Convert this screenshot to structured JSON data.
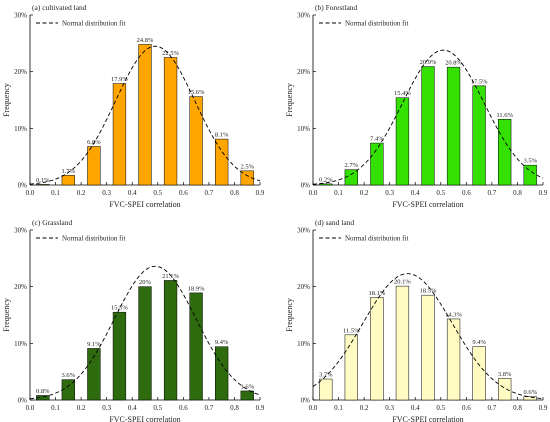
{
  "chart_data": [
    {
      "type": "bar",
      "panel": "(a) cultivated land",
      "legend_label": "Normal distribution fit",
      "xlabel": "FVC-SPEI correlation",
      "ylabel": "Frequency",
      "x": [
        0.05,
        0.15,
        0.25,
        0.35,
        0.45,
        0.55,
        0.65,
        0.75,
        0.85
      ],
      "values": [
        0.1,
        1.7,
        6.8,
        17.9,
        24.8,
        22.5,
        15.6,
        8.1,
        2.5
      ],
      "labels": [
        "0.1%",
        "1.7%",
        "6.8%",
        "17.9%",
        "24.8%",
        "22.5%",
        "15.6%",
        "8.1%",
        "2.5%"
      ],
      "fit": {
        "mean": 0.49,
        "sd": 0.155,
        "peak": 24.5
      },
      "xlim": [
        0,
        0.9
      ],
      "ylim": [
        0,
        30
      ],
      "xticks": [
        "0.0",
        "0.1",
        "0.2",
        "0.3",
        "0.4",
        "0.5",
        "0.6",
        "0.7",
        "0.8",
        "0.9"
      ],
      "yticks": [
        "0%",
        "10%",
        "20%",
        "30%"
      ],
      "color": "#FFA500"
    },
    {
      "type": "bar",
      "panel": "(b) Forestland",
      "legend_label": "Normal distribution fit",
      "xlabel": "FVC-SPEI correlation",
      "ylabel": "Frequency",
      "x": [
        0.05,
        0.15,
        0.25,
        0.35,
        0.45,
        0.55,
        0.65,
        0.75,
        0.85
      ],
      "values": [
        0.2,
        2.7,
        7.4,
        15.4,
        20.9,
        20.8,
        17.5,
        11.6,
        3.5
      ],
      "labels": [
        "0.2%",
        "2.7%",
        "7.4%",
        "15.4%",
        "20.9%",
        "20.8%",
        "17.5%",
        "11.6%",
        "3.5%"
      ],
      "fit": {
        "mean": 0.51,
        "sd": 0.16,
        "peak": 23.8
      },
      "xlim": [
        0,
        0.9
      ],
      "ylim": [
        0,
        30
      ],
      "xticks": [
        "0.0",
        "0.1",
        "0.2",
        "0.3",
        "0.4",
        "0.5",
        "0.6",
        "0.7",
        "0.8",
        "0.9"
      ],
      "yticks": [
        "0%",
        "10%",
        "20%",
        "30%"
      ],
      "color": "#33E000"
    },
    {
      "type": "bar",
      "panel": "(c) Grassland",
      "legend_label": "Normal distribution fit",
      "xlabel": "FVC-SPEI correlation",
      "ylabel": "Frequency",
      "x": [
        0.05,
        0.15,
        0.25,
        0.35,
        0.45,
        0.55,
        0.65,
        0.75,
        0.85
      ],
      "values": [
        0.8,
        3.6,
        9.1,
        15.5,
        20.0,
        21.1,
        18.9,
        9.4,
        1.6
      ],
      "labels": [
        "0.8%",
        "3.6%",
        "9.1%",
        "15.5%",
        "20%",
        "21.1%",
        "18.9%",
        "9.4%",
        "1.6%"
      ],
      "fit": {
        "mean": 0.49,
        "sd": 0.16,
        "peak": 23.6
      },
      "xlim": [
        0,
        0.9
      ],
      "ylim": [
        0,
        30
      ],
      "xticks": [
        "0.0",
        "0.1",
        "0.2",
        "0.3",
        "0.4",
        "0.5",
        "0.6",
        "0.7",
        "0.8",
        "0.9"
      ],
      "yticks": [
        "0%",
        "10%",
        "20%",
        "30%"
      ],
      "color": "#2E6B0E"
    },
    {
      "type": "bar",
      "panel": "(d) sand land",
      "legend_label": "Normal distribution fit",
      "xlabel": "FVC-SPEI correlation",
      "ylabel": "Frequency",
      "x": [
        0.05,
        0.15,
        0.25,
        0.35,
        0.45,
        0.55,
        0.65,
        0.75,
        0.85
      ],
      "values": [
        3.7,
        11.5,
        18.1,
        20.1,
        18.5,
        14.3,
        9.4,
        3.8,
        0.6
      ],
      "labels": [
        "3.7%",
        "11.5%",
        "18.1%",
        "20.1%",
        "18.5%",
        "14.3%",
        "9.4%",
        "3.8%",
        "0.6%"
      ],
      "fit": {
        "mean": 0.37,
        "sd": 0.175,
        "peak": 22.3
      },
      "xlim": [
        0,
        0.9
      ],
      "ylim": [
        0,
        30
      ],
      "xticks": [
        "0.0",
        "0.1",
        "0.2",
        "0.3",
        "0.4",
        "0.5",
        "0.6",
        "0.7",
        "0.8",
        "0.9"
      ],
      "yticks": [
        "0%",
        "10%",
        "20%",
        "30%"
      ],
      "color": "#FFFBC2"
    }
  ]
}
